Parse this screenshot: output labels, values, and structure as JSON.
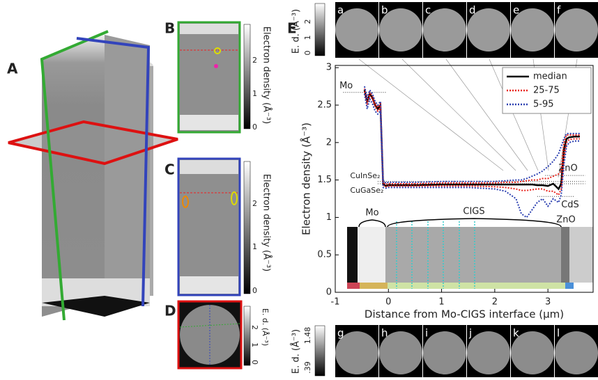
{
  "panels": {
    "A": {
      "label": "A"
    },
    "B": {
      "label": "B",
      "colorbar_label": "Electron density (Å⁻³)",
      "colorbar_ticks": [
        0,
        1,
        2
      ]
    },
    "C": {
      "label": "C",
      "colorbar_label": "Electron density (Å⁻³)",
      "colorbar_ticks": [
        0,
        1,
        2
      ]
    },
    "D": {
      "label": "D",
      "colorbar_label": "E. d. (Å⁻³)",
      "colorbar_ticks": [
        0,
        1,
        2
      ]
    },
    "E": {
      "label": "E",
      "top_strip": {
        "colorbar_label": "E. d. (Å⁻³)",
        "colorbar_ticks": [
          0,
          1,
          2
        ],
        "frames": [
          "a",
          "b",
          "c",
          "d",
          "e",
          "f"
        ]
      },
      "bottom_strip": {
        "colorbar_label": "E. d. (Å⁻³)",
        "colorbar_ticks": [
          ".39",
          "1.48"
        ],
        "frames": [
          "g",
          "h",
          "i",
          "j",
          "k",
          "l"
        ]
      },
      "inset_labels": [
        "Mo",
        "CIGS",
        "ZnO"
      ]
    }
  },
  "chart_data": {
    "type": "line",
    "xlabel": "Distance from Mo-CIGS interface (µm)",
    "ylabel": "Electron density (Å⁻³)",
    "xlim": [
      -1,
      3.85
    ],
    "ylim": [
      0,
      3.03
    ],
    "xticks": [
      -1,
      0,
      1,
      2,
      3
    ],
    "yticks": [
      0,
      0.5,
      1,
      1.5,
      2,
      2.5,
      3
    ],
    "legend": "upper right",
    "x": [
      -0.45,
      -0.4,
      -0.35,
      -0.3,
      -0.25,
      -0.2,
      -0.15,
      -0.1,
      -0.05,
      0,
      0.5,
      1,
      1.5,
      2,
      2.2,
      2.4,
      2.5,
      2.6,
      2.7,
      2.8,
      2.9,
      3.0,
      3.1,
      3.2,
      3.25,
      3.3,
      3.35,
      3.4,
      3.5,
      3.6
    ],
    "series": [
      {
        "name": "median",
        "color": "#000000",
        "style": "solid",
        "values": [
          2.7,
          2.55,
          2.65,
          2.6,
          2.5,
          2.45,
          2.5,
          1.45,
          1.42,
          1.43,
          1.43,
          1.44,
          1.44,
          1.44,
          1.44,
          1.44,
          1.44,
          1.44,
          1.44,
          1.43,
          1.43,
          1.42,
          1.45,
          1.38,
          1.45,
          1.9,
          2.05,
          2.07,
          2.08,
          2.08
        ]
      },
      {
        "name": "25-75",
        "color": "#e8221b",
        "style": "dotted",
        "low": [
          2.68,
          2.52,
          2.62,
          2.58,
          2.48,
          2.42,
          2.47,
          1.43,
          1.41,
          1.42,
          1.42,
          1.42,
          1.42,
          1.41,
          1.4,
          1.38,
          1.36,
          1.36,
          1.37,
          1.38,
          1.38,
          1.35,
          1.35,
          1.3,
          1.38,
          1.8,
          2.0,
          2.04,
          2.05,
          2.05
        ],
        "high": [
          2.72,
          2.58,
          2.67,
          2.62,
          2.52,
          2.47,
          2.52,
          1.47,
          1.44,
          1.45,
          1.45,
          1.46,
          1.46,
          1.46,
          1.47,
          1.47,
          1.48,
          1.49,
          1.5,
          1.5,
          1.52,
          1.52,
          1.55,
          1.58,
          1.62,
          2.0,
          2.1,
          2.1,
          2.1,
          2.1
        ]
      },
      {
        "name": "5-95",
        "color": "#2a3fb0",
        "style": "dotted",
        "low": [
          2.65,
          2.45,
          2.58,
          2.52,
          2.42,
          2.38,
          2.42,
          1.4,
          1.39,
          1.4,
          1.4,
          1.4,
          1.4,
          1.38,
          1.35,
          1.25,
          1.05,
          1.0,
          1.1,
          1.2,
          1.25,
          1.15,
          1.25,
          1.2,
          1.3,
          1.7,
          1.95,
          2.0,
          2.02,
          2.02
        ],
        "high": [
          2.75,
          2.6,
          2.7,
          2.65,
          2.55,
          2.5,
          2.55,
          1.5,
          1.46,
          1.47,
          1.47,
          1.48,
          1.48,
          1.48,
          1.49,
          1.5,
          1.5,
          1.52,
          1.55,
          1.58,
          1.62,
          1.68,
          1.75,
          1.85,
          1.95,
          2.05,
          2.12,
          2.12,
          2.12,
          2.12
        ]
      }
    ],
    "references": [
      {
        "label": "Mo",
        "value": 2.67,
        "x": [
          -0.85,
          -0.05
        ]
      },
      {
        "label": "CuInSe₂",
        "value": 1.48,
        "x": [
          -0.2,
          3.7
        ]
      },
      {
        "label": "CuGaSe₂",
        "value": 1.45,
        "x": [
          -0.2,
          3.7
        ]
      },
      {
        "label": "ZnO",
        "value": 1.56,
        "x": [
          2.95,
          3.7
        ]
      },
      {
        "label": "CdS",
        "value": 1.28,
        "x": [
          2.8,
          3.5
        ]
      }
    ]
  }
}
